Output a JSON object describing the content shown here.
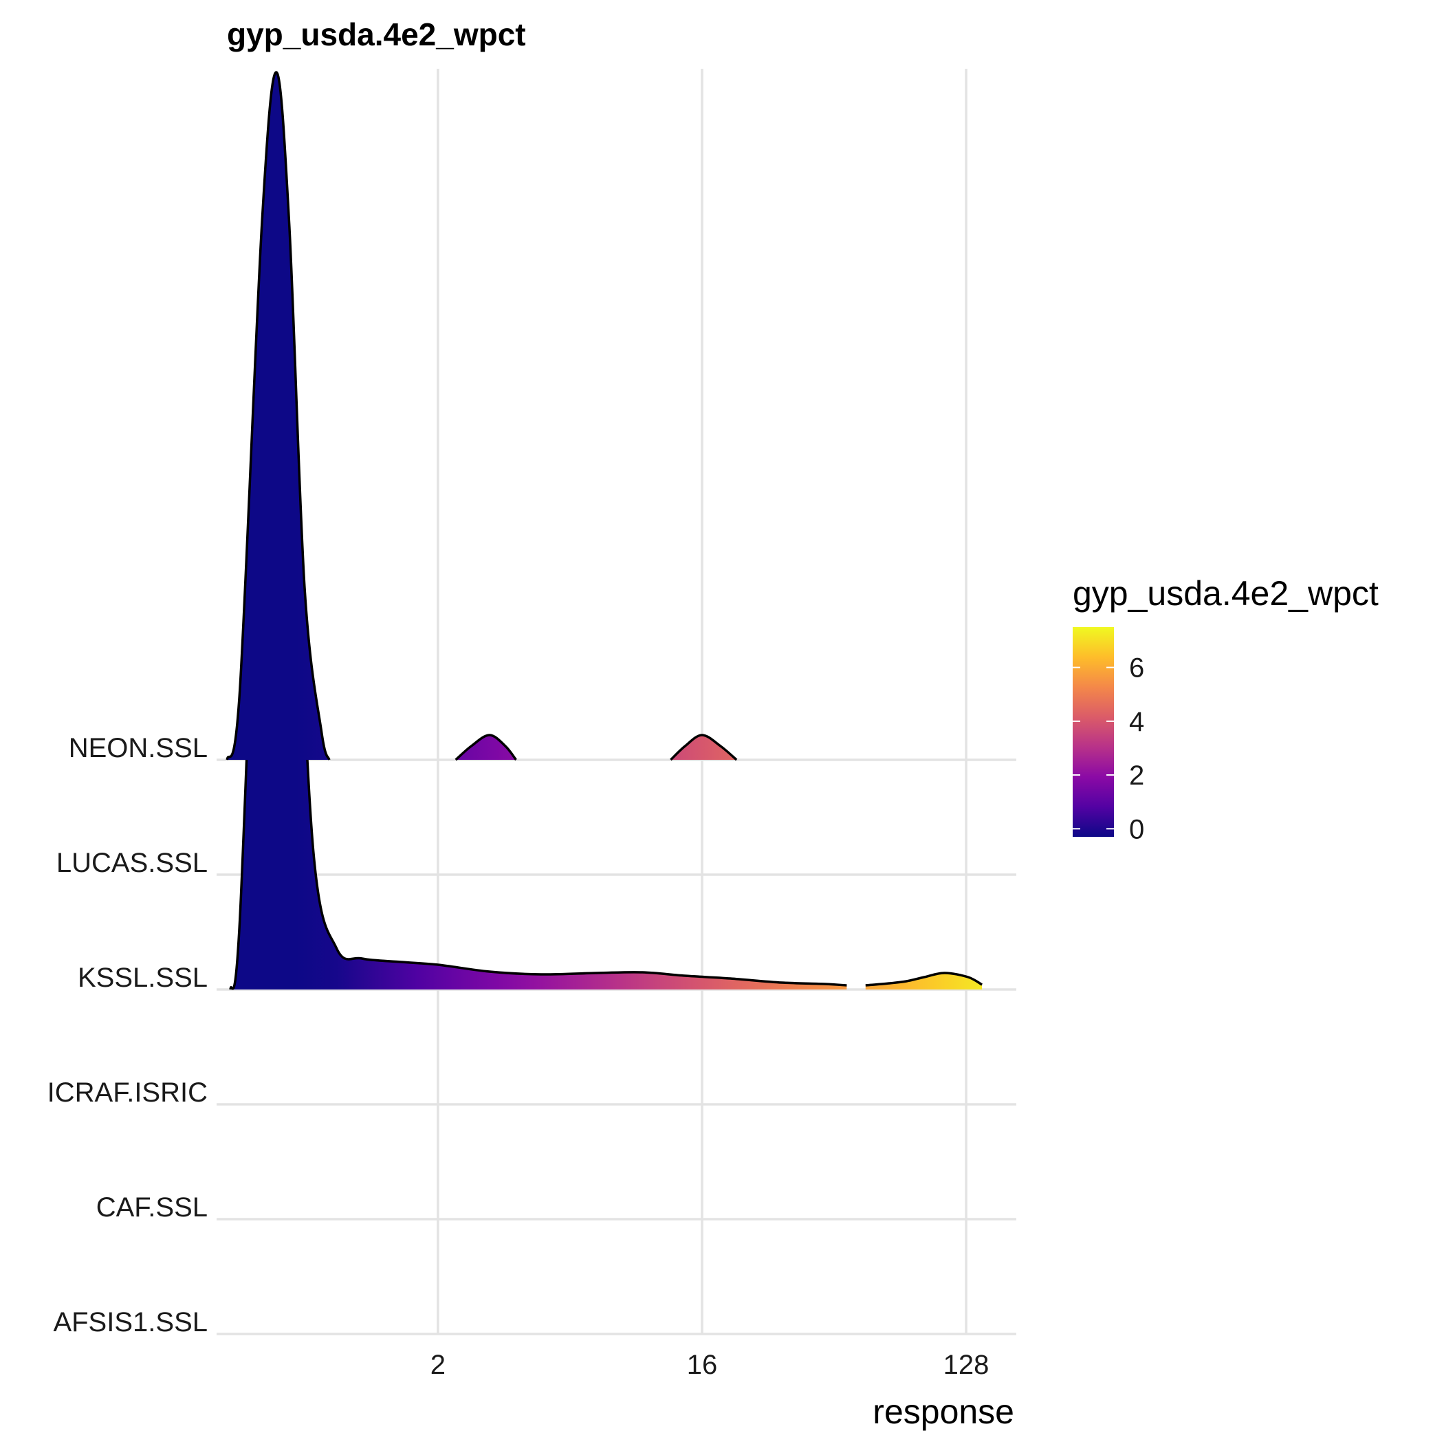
{
  "chart_data": {
    "type": "ridgeline",
    "title": "gyp_usda.4e2_wpct",
    "xlabel": "response",
    "ylabel": "",
    "x_scale": "log2",
    "x_ticks": [
      2,
      16,
      128
    ],
    "x_tick_labels": [
      "2",
      "16",
      "128"
    ],
    "xlim": [
      0.35,
      190
    ],
    "grid": true,
    "categories": [
      "NEON.SSL",
      "LUCAS.SSL",
      "KSSL.SSL",
      "ICRAF.ISRIC",
      "CAF.SSL",
      "AFSIS1.SSL"
    ],
    "series": [
      {
        "name": "NEON.SSL",
        "segments": [
          [
            [
              0.38,
              0.0
            ],
            [
              0.42,
              0.1
            ],
            [
              0.5,
              0.78
            ],
            [
              0.56,
              1.0
            ],
            [
              0.62,
              0.78
            ],
            [
              0.7,
              0.25
            ],
            [
              0.8,
              0.04
            ],
            [
              0.85,
              0.0
            ]
          ],
          [
            [
              2.3,
              0.0
            ],
            [
              2.6,
              0.02
            ],
            [
              3.0,
              0.036
            ],
            [
              3.4,
              0.02
            ],
            [
              3.7,
              0.0
            ]
          ],
          [
            [
              12.5,
              0.0
            ],
            [
              14.0,
              0.02
            ],
            [
              16.0,
              0.036
            ],
            [
              18.5,
              0.02
            ],
            [
              21.0,
              0.0
            ]
          ]
        ]
      },
      {
        "name": "KSSL.SSL",
        "segments": [
          [
            [
              0.39,
              0.0
            ],
            [
              0.42,
              0.1
            ],
            [
              0.5,
              0.86
            ],
            [
              0.57,
              1.0
            ],
            [
              0.64,
              0.75
            ],
            [
              0.75,
              0.2
            ],
            [
              0.9,
              0.06
            ],
            [
              1.1,
              0.045
            ],
            [
              1.5,
              0.04
            ],
            [
              2.0,
              0.036
            ],
            [
              3.0,
              0.026
            ],
            [
              4.5,
              0.022
            ],
            [
              7.0,
              0.024
            ],
            [
              10.0,
              0.025
            ],
            [
              14.0,
              0.02
            ],
            [
              20.0,
              0.016
            ],
            [
              30.0,
              0.01
            ],
            [
              42.0,
              0.008
            ],
            [
              50.0,
              0.006
            ]
          ],
          [
            [
              58.0,
              0.006
            ],
            [
              70.0,
              0.009
            ],
            [
              80.0,
              0.012
            ],
            [
              92.0,
              0.018
            ],
            [
              108.0,
              0.024
            ],
            [
              130.0,
              0.018
            ],
            [
              145.0,
              0.007
            ]
          ]
        ]
      }
    ],
    "legend": {
      "title": "gyp_usda.4e2_wpct",
      "position": "right",
      "range": [
        -0.3,
        7.5
      ],
      "ticks": [
        0,
        2,
        4,
        6
      ],
      "tick_labels": [
        "0",
        "2",
        "4",
        "6"
      ],
      "colors": [
        "#0d0887",
        "#5302a3",
        "#8b0aa5",
        "#b83289",
        "#db5c68",
        "#f48849",
        "#febd2a",
        "#f0f921"
      ]
    },
    "fill_color_by": "log2(response)"
  }
}
